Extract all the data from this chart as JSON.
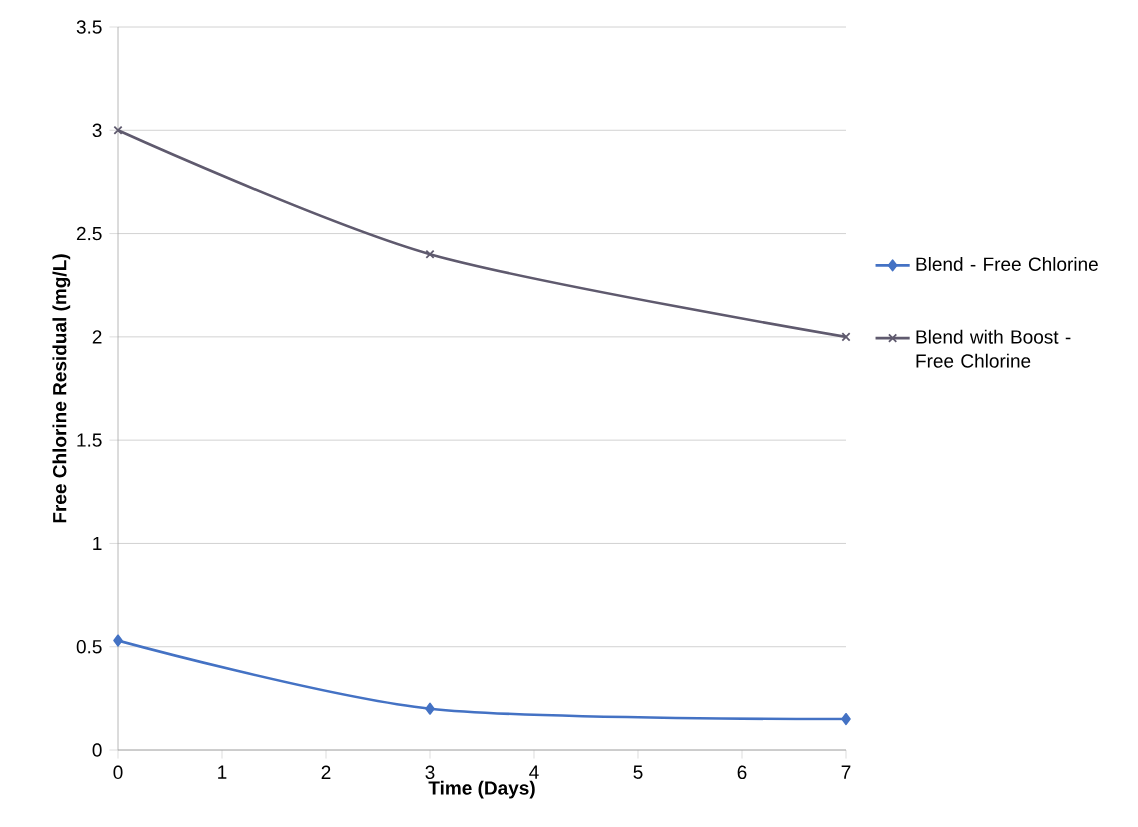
{
  "chart_data": {
    "type": "line",
    "xlabel": "Time (Days)",
    "ylabel": "Free Chlorine Residual (mg/L)",
    "x": [
      0,
      3,
      7
    ],
    "series": [
      {
        "name": "Blend - Free Chlorine",
        "color": "#4472c4",
        "values": [
          0.53,
          0.2,
          0.15
        ],
        "marker": "diamond"
      },
      {
        "name": "Blend with Boost - Free Chlorine",
        "color": "#5f5a6e",
        "values": [
          3.0,
          2.4,
          2.0
        ],
        "marker": "cross"
      }
    ],
    "xlim": [
      0,
      7
    ],
    "xticks": [
      0,
      1,
      2,
      3,
      4,
      5,
      6,
      7
    ],
    "ylim": [
      0,
      3.5
    ],
    "yticks": [
      0,
      0.5,
      1,
      1.5,
      2,
      2.5,
      3,
      3.5
    ],
    "grid": "y",
    "legend": "right",
    "line_style": "solid"
  }
}
